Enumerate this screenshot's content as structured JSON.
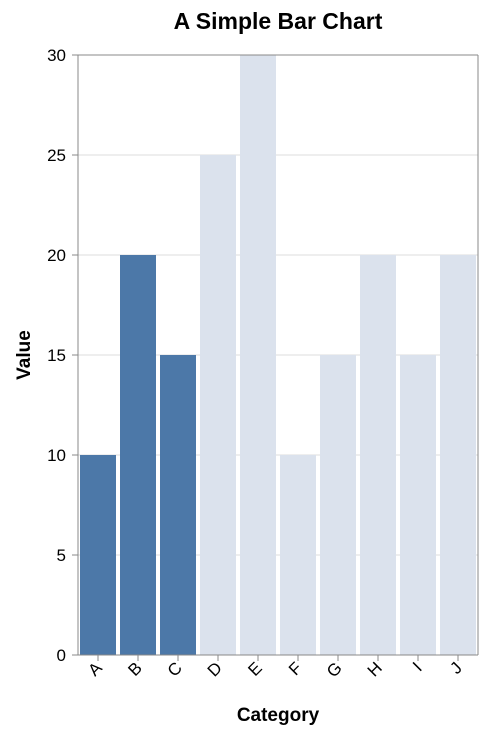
{
  "chart_data": {
    "type": "bar",
    "title": "A Simple Bar Chart",
    "xlabel": "Category",
    "ylabel": "Value",
    "categories": [
      "A",
      "B",
      "C",
      "D",
      "E",
      "F",
      "G",
      "H",
      "I",
      "J"
    ],
    "values": [
      10,
      20,
      15,
      25,
      30,
      10,
      15,
      20,
      15,
      20
    ],
    "highlighted": [
      true,
      true,
      true,
      false,
      false,
      false,
      false,
      false,
      false,
      false
    ],
    "ylim": [
      0,
      30
    ],
    "yticks": [
      0,
      5,
      10,
      15,
      20,
      25,
      30
    ],
    "grid": true,
    "colors": {
      "highlight": "#4c78a8",
      "default": "#dbe2ed"
    }
  }
}
